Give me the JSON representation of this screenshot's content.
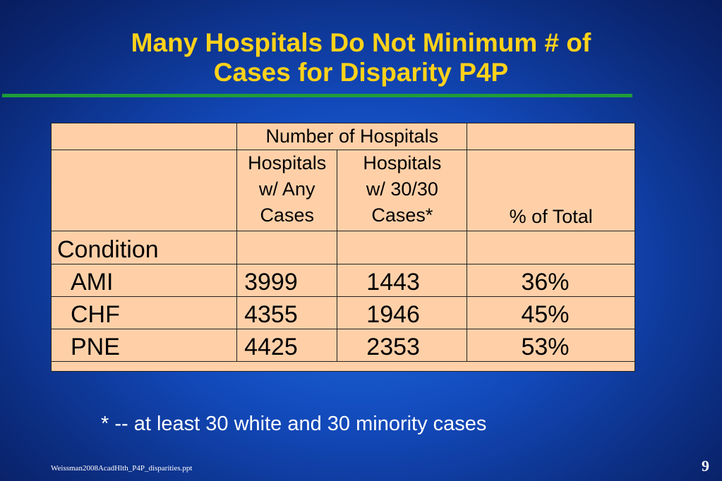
{
  "slide": {
    "title_line1": "Many Hospitals Do Not Minimum # of",
    "title_line2": "Cases for Disparity P4P",
    "footnote": "* -- at least 30 white and 30 minority cases",
    "source": "Weissman2008AcadHlth_P4P_disparities.ppt",
    "page_number": "9",
    "colors": {
      "title": "#ffd21a",
      "rule": "#1f9c3a",
      "table_bg": "#ffd0a8",
      "text": "#ffffff"
    }
  },
  "table": {
    "group_header": "Number of Hospitals",
    "col_any": "Hospitals w/ Any Cases",
    "col_any_lines": [
      "Hospitals",
      "w/ Any",
      "Cases"
    ],
    "col_30": "Hospitals w/ 30/30 Cases*",
    "col_30_lines": [
      "Hospitals",
      "w/ 30/30",
      "Cases*"
    ],
    "col_pct": "% of Total",
    "row_group_label": "Condition",
    "rows": [
      {
        "condition": "AMI",
        "any": "3999",
        "min30": "1443",
        "pct": "36%"
      },
      {
        "condition": "CHF",
        "any": "4355",
        "min30": "1946",
        "pct": "45%"
      },
      {
        "condition": "PNE",
        "any": "4425",
        "min30": "2353",
        "pct": "53%"
      }
    ]
  }
}
